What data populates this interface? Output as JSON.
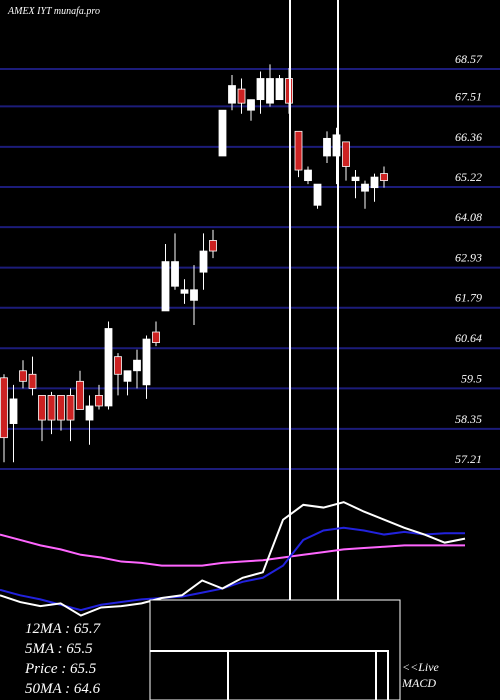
{
  "chart_data": [
    {
      "type": "candlestick",
      "title": "AMEX IYT munafa.pro",
      "up_color": "#ffffff",
      "down_color": "#cc2222",
      "grid_color": "#1c1c7a",
      "ylim": [
        57.21,
        68.57
      ],
      "yticks": [
        68.57,
        67.51,
        66.36,
        65.22,
        64.08,
        62.93,
        61.79,
        60.64,
        59.5,
        58.35,
        57.21
      ],
      "open": [
        59.8,
        58.5,
        60.0,
        59.9,
        59.3,
        59.3,
        59.3,
        59.3,
        59.7,
        58.6,
        59.3,
        59.0,
        60.4,
        59.7,
        60.0,
        59.6,
        61.1,
        61.7,
        62.4,
        62.2,
        62.0,
        62.8,
        63.7,
        66.1,
        67.6,
        68.0,
        67.4,
        67.7,
        67.6,
        67.7,
        68.3,
        66.8,
        65.4,
        64.7,
        66.1,
        66.1,
        66.5,
        65.4,
        65.1,
        65.2,
        65.6
      ],
      "high": [
        59.9,
        59.6,
        60.3,
        60.4,
        59.3,
        59.4,
        59.3,
        59.5,
        60.0,
        59.3,
        59.6,
        61.4,
        60.5,
        60.0,
        60.6,
        61.0,
        61.4,
        63.6,
        63.9,
        62.6,
        63.0,
        63.9,
        64.0,
        67.4,
        68.4,
        68.3,
        67.7,
        68.5,
        68.7,
        68.4,
        68.6,
        66.8,
        65.8,
        65.3,
        66.8,
        66.9,
        66.5,
        65.7,
        65.4,
        65.6,
        65.8
      ],
      "low": [
        57.4,
        57.4,
        59.5,
        59.3,
        58.0,
        58.2,
        58.3,
        58.0,
        58.9,
        57.9,
        58.9,
        58.9,
        59.3,
        59.3,
        59.5,
        59.2,
        60.7,
        61.7,
        62.3,
        61.9,
        61.3,
        62.3,
        63.2,
        66.1,
        67.4,
        67.3,
        67.1,
        67.3,
        67.5,
        67.7,
        67.3,
        65.5,
        65.3,
        64.6,
        65.9,
        65.3,
        65.4,
        64.9,
        64.6,
        64.8,
        65.2
      ],
      "close": [
        58.1,
        59.2,
        59.7,
        59.5,
        58.6,
        58.6,
        58.6,
        58.6,
        58.9,
        59.0,
        59.0,
        61.2,
        59.9,
        60.0,
        60.3,
        60.9,
        60.8,
        63.1,
        63.1,
        62.3,
        62.3,
        63.4,
        63.4,
        67.4,
        68.1,
        67.6,
        67.7,
        68.3,
        68.3,
        68.3,
        67.6,
        65.7,
        65.7,
        65.3,
        66.6,
        66.7,
        65.8,
        65.5,
        65.3,
        65.5,
        65.4
      ],
      "annotations": [
        "12MA : 65.7",
        "5MA : 65.5",
        "Price  : 65.5",
        "50MA : 64.6"
      ]
    },
    {
      "type": "line",
      "ylim": [
        0,
        100
      ],
      "series": [
        {
          "color": "#ff66ff",
          "values": [
            67,
            63,
            59,
            56,
            52,
            50,
            47,
            46,
            44,
            44,
            44,
            46,
            47,
            48,
            50,
            52,
            54,
            56,
            57,
            58,
            59,
            59,
            59,
            59
          ]
        },
        {
          "color": "#2222dd",
          "values": [
            26,
            22,
            19,
            15,
            11,
            15,
            17,
            19,
            20,
            21,
            24,
            27,
            32,
            35,
            44,
            63,
            70,
            72,
            70,
            67,
            69,
            67,
            68,
            68
          ]
        },
        {
          "color": "#ffffff",
          "values": [
            22,
            17,
            14,
            16,
            7,
            13,
            14,
            16,
            20,
            22,
            33,
            27,
            35,
            39,
            78,
            89,
            87,
            91,
            84,
            78,
            72,
            67,
            61,
            64
          ]
        }
      ],
      "annotations": [
        "<<Live",
        "MACD"
      ]
    }
  ]
}
